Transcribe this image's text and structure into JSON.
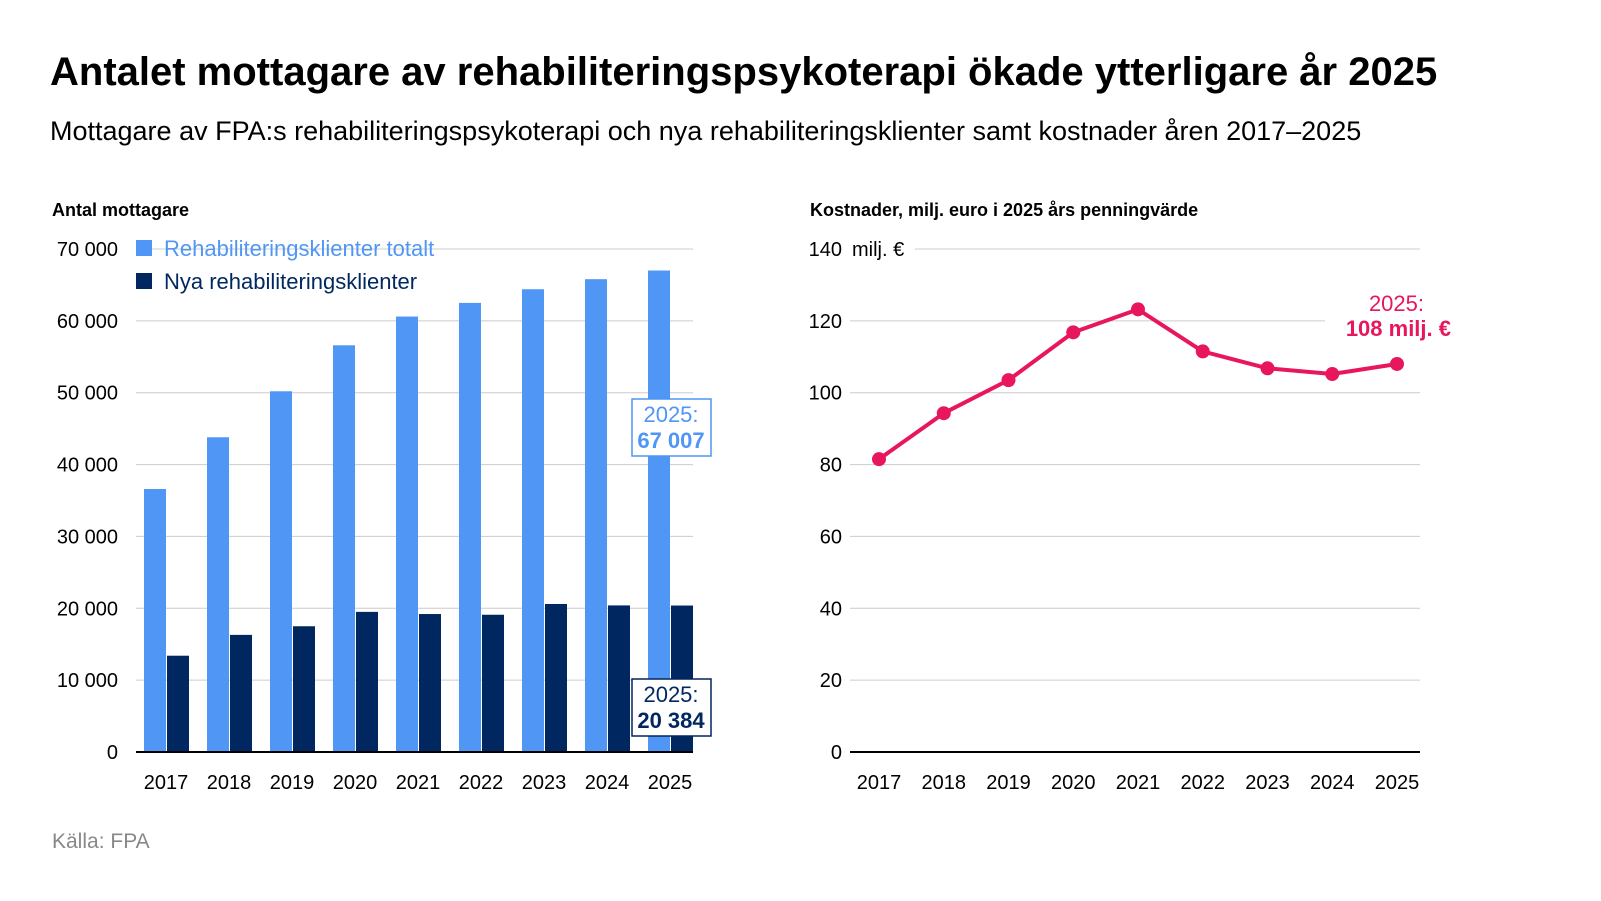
{
  "title": "Antalet mottagare av rehabiliteringspsykoterapi ökade ytterligare år 2025",
  "subtitle": "Mottagare av FPA:s rehabiliteringspsykoterapi och nya rehabiliteringsklienter samt kostnader åren 2017–2025",
  "source": "Källa: FPA",
  "colors": {
    "total": "#4f96f5",
    "new": "#00275f",
    "cost": "#e8175d",
    "grid": "#cccccc"
  },
  "chart_data": [
    {
      "type": "bar",
      "ylabel": "Antal mottagare",
      "categories": [
        "2017",
        "2018",
        "2019",
        "2020",
        "2021",
        "2022",
        "2023",
        "2024",
        "2025"
      ],
      "ylim": [
        0,
        70000
      ],
      "yticks": [
        0,
        10000,
        20000,
        30000,
        40000,
        50000,
        60000,
        70000
      ],
      "ytick_labels": [
        "0",
        "10 000",
        "20 000",
        "30 000",
        "40 000",
        "50 000",
        "60 000",
        "70 000"
      ],
      "grid": true,
      "legend_placement": "top-left",
      "series": [
        {
          "name": "Rehabiliteringsklienter totalt",
          "values": [
            36600,
            43800,
            50200,
            56600,
            60600,
            62500,
            64400,
            65800,
            67007
          ]
        },
        {
          "name": "Nya rehabiliteringsklienter",
          "values": [
            13400,
            16300,
            17500,
            19500,
            19200,
            19100,
            20600,
            20400,
            20384
          ]
        }
      ],
      "annotations": [
        {
          "line1": "2025:",
          "line2": "67 007",
          "series": "Rehabiliteringsklienter totalt"
        },
        {
          "line1": "2025:",
          "line2": "20 384",
          "series": "Nya rehabiliteringsklienter"
        }
      ]
    },
    {
      "type": "line",
      "ylabel": "Kostnader, milj. euro i 2025 års penningvärde",
      "unit_label": "milj. €",
      "categories": [
        "2017",
        "2018",
        "2019",
        "2020",
        "2021",
        "2022",
        "2023",
        "2024",
        "2025"
      ],
      "ylim": [
        0,
        140
      ],
      "yticks": [
        0,
        20,
        40,
        60,
        80,
        100,
        120,
        140
      ],
      "ytick_labels": [
        "0",
        "20",
        "40",
        "60",
        "80",
        "100",
        "120",
        "140"
      ],
      "grid": true,
      "values": [
        81.5,
        94.3,
        103.5,
        116.8,
        123.2,
        111.5,
        106.8,
        105.2,
        108
      ],
      "annotation": {
        "line1": "2025:",
        "line2": "108 milj. €"
      }
    }
  ]
}
